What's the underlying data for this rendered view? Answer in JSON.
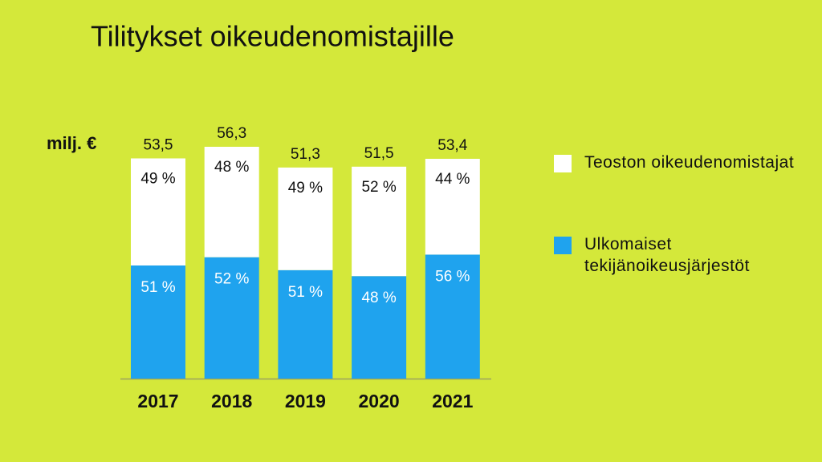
{
  "chart_data": {
    "type": "stacked-bar",
    "title": "Tilitykset oikeudenomistajille",
    "unit": "milj. €",
    "categories": [
      "2017",
      "2018",
      "2019",
      "2020",
      "2021"
    ],
    "totals": {
      "values": [
        53.5,
        56.3,
        51.3,
        51.5,
        53.4
      ],
      "value_labels": [
        "53,5",
        "56,3",
        "51,3",
        "51,5",
        "53,4"
      ]
    },
    "series": [
      {
        "name": "Ulkomaiset tekijänoikeusjärjestöt",
        "color": "#1fa3ee",
        "label_color": "#ffffff",
        "values": [
          51,
          52,
          51,
          48,
          56
        ],
        "value_labels": [
          "51 %",
          "52 %",
          "51 %",
          "48 %",
          "56 %"
        ]
      },
      {
        "name": "Teoston oikeudenomistajat",
        "color": "#ffffff",
        "label_color": "#111111",
        "values": [
          49,
          48,
          49,
          52,
          44
        ],
        "value_labels": [
          "49 %",
          "48 %",
          "49 %",
          "52 %",
          "44 %"
        ]
      }
    ],
    "background": "#d4e83a"
  }
}
